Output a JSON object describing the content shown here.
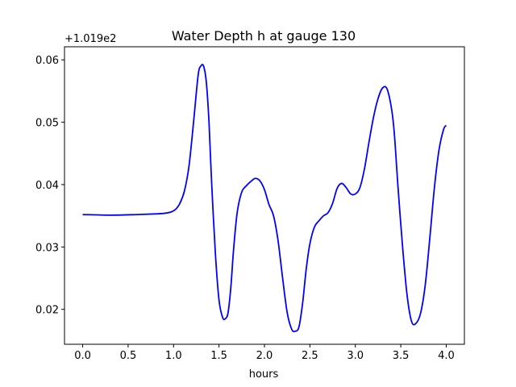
{
  "chart_data": {
    "type": "line",
    "title": "Water Depth h at gauge 130",
    "xlabel": "hours",
    "ylabel": "",
    "offset_label": "+1.019e2",
    "xlim": [
      -0.2,
      4.2
    ],
    "ylim": [
      0.0144,
      0.0621
    ],
    "x_ticks": [
      0.0,
      0.5,
      1.0,
      1.5,
      2.0,
      2.5,
      3.0,
      3.5,
      4.0
    ],
    "x_tick_labels": [
      "0.0",
      "0.5",
      "1.0",
      "1.5",
      "2.0",
      "2.5",
      "3.0",
      "3.5",
      "4.0"
    ],
    "y_ticks": [
      0.02,
      0.03,
      0.04,
      0.05,
      0.06
    ],
    "y_tick_labels": [
      "0.02",
      "0.03",
      "0.04",
      "0.05",
      "0.06"
    ],
    "grid": false,
    "series": [
      {
        "color": "#0000ff",
        "x": [
          0.0,
          0.3,
          0.6,
          0.8,
          0.9,
          0.97,
          1.02,
          1.07,
          1.12,
          1.17,
          1.22,
          1.27,
          1.3,
          1.33,
          1.36,
          1.39,
          1.42,
          1.46,
          1.5,
          1.54,
          1.57,
          1.6,
          1.63,
          1.66,
          1.7,
          1.75,
          1.8,
          1.85,
          1.9,
          1.95,
          2.0,
          2.05,
          2.1,
          2.15,
          2.2,
          2.25,
          2.3,
          2.34,
          2.38,
          2.42,
          2.46,
          2.5,
          2.55,
          2.6,
          2.65,
          2.7,
          2.75,
          2.8,
          2.85,
          2.9,
          2.95,
          3.0,
          3.05,
          3.1,
          3.15,
          3.2,
          3.25,
          3.3,
          3.35,
          3.4,
          3.43,
          3.47,
          3.52,
          3.57,
          3.62,
          3.67,
          3.72,
          3.77,
          3.82,
          3.87,
          3.92,
          3.97,
          4.0
        ],
        "y": [
          0.0352,
          0.0351,
          0.0352,
          0.0353,
          0.0354,
          0.0356,
          0.036,
          0.037,
          0.039,
          0.043,
          0.05,
          0.0575,
          0.059,
          0.059,
          0.0565,
          0.05,
          0.04,
          0.029,
          0.0215,
          0.0187,
          0.0185,
          0.0195,
          0.0235,
          0.0295,
          0.0355,
          0.0388,
          0.0398,
          0.0405,
          0.041,
          0.0406,
          0.0392,
          0.0368,
          0.035,
          0.031,
          0.025,
          0.0195,
          0.0168,
          0.0165,
          0.0172,
          0.021,
          0.0265,
          0.0305,
          0.0332,
          0.0342,
          0.035,
          0.0355,
          0.037,
          0.0394,
          0.0402,
          0.0395,
          0.0385,
          0.0385,
          0.0395,
          0.0425,
          0.0468,
          0.0508,
          0.0538,
          0.0555,
          0.0553,
          0.052,
          0.048,
          0.0395,
          0.03,
          0.0222,
          0.018,
          0.0178,
          0.0195,
          0.024,
          0.0315,
          0.0395,
          0.0455,
          0.0488,
          0.0495
        ]
      }
    ]
  }
}
